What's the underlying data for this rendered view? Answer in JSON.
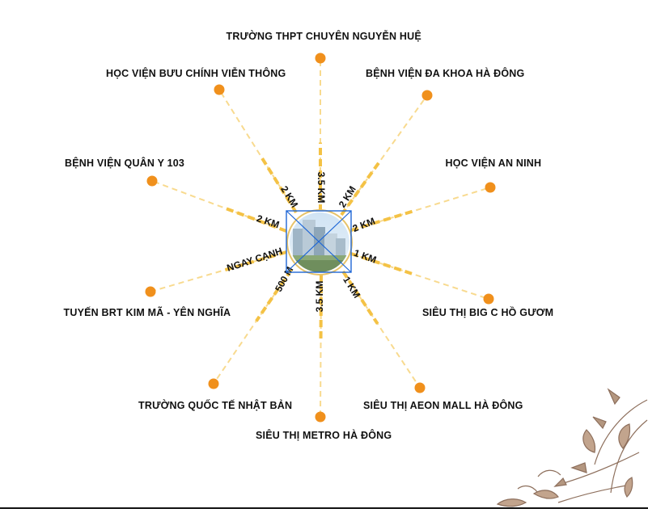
{
  "center": {
    "image": "project-building-photo"
  },
  "colors": {
    "line": "#f4c245",
    "dot": "#f0901c",
    "marker": "#1e66d6",
    "ornament": "#7a5640"
  },
  "destinations": [
    {
      "name": "TRƯỜNG THPT CHUYÊN NGUYỄN HUỆ",
      "distance": "3.5 KM"
    },
    {
      "name": "BỆNH VIỆN ĐA KHOA HÀ ĐÔNG",
      "distance": "2 KM"
    },
    {
      "name": "HỌC VIỆN AN NINH",
      "distance": "2 KM"
    },
    {
      "name": "SIÊU THỊ BIG C HỒ GƯƠM",
      "distance": "1 KM"
    },
    {
      "name": "SIÊU THỊ AEON MALL HÀ ĐÔNG",
      "distance": "1 KM"
    },
    {
      "name": "SIÊU THỊ METRO HÀ ĐÔNG",
      "distance": "3.5 KM"
    },
    {
      "name": "TRƯỜNG QUỐC TẾ NHẬT BẢN",
      "distance": "500 M"
    },
    {
      "name": "TUYẾN BRT KIM MÃ - YÊN NGHĨA",
      "distance": "NGAY CẠNH"
    },
    {
      "name": "BỆNH VIỆN QUÂN Y 103",
      "distance": "2 KM"
    },
    {
      "name": "HỌC VIỆN BƯU CHÍNH VIỄN THÔNG",
      "distance": "2 KM"
    }
  ]
}
